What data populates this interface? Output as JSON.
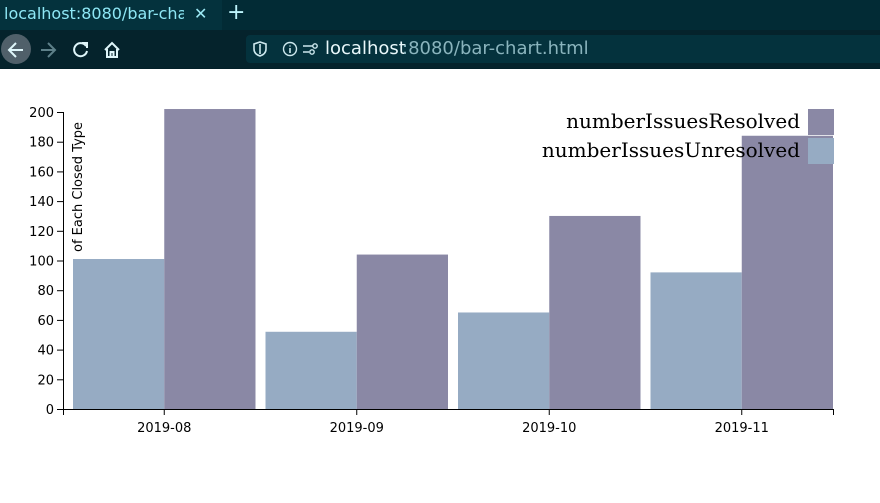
{
  "browser": {
    "tab_title": "localhost:8080/bar-cha",
    "tab_close": "✕",
    "new_tab": "+",
    "url_host": "localhost",
    "url_path": ":8080/bar-chart.html",
    "icons": [
      "back-arrow-icon",
      "forward-arrow-icon",
      "reload-icon",
      "home-icon",
      "shield-icon",
      "info-icon",
      "permissions-icon"
    ]
  },
  "colors": {
    "resolved": "#8a88a5",
    "unresolved": "#96abc3"
  },
  "chart_data": {
    "type": "bar",
    "ylabel": "Number of Each Closed Type",
    "ylabel_visible": "of Each Closed Type",
    "categories": [
      "2019-08",
      "2019-09",
      "2019-10",
      "2019-11"
    ],
    "series": [
      {
        "name": "numberIssuesUnresolved",
        "values": [
          101,
          52,
          65,
          92
        ]
      },
      {
        "name": "numberIssuesResolved",
        "values": [
          202,
          104,
          130,
          184
        ]
      }
    ],
    "ylim": [
      0,
      200
    ],
    "yticks": [
      "0",
      "20",
      "40",
      "60",
      "80",
      "100",
      "120",
      "140",
      "160",
      "180",
      "200"
    ],
    "legend": [
      "numberIssuesResolved",
      "numberIssuesUnresolved"
    ],
    "legend_placement": "top-right",
    "grid": false
  }
}
